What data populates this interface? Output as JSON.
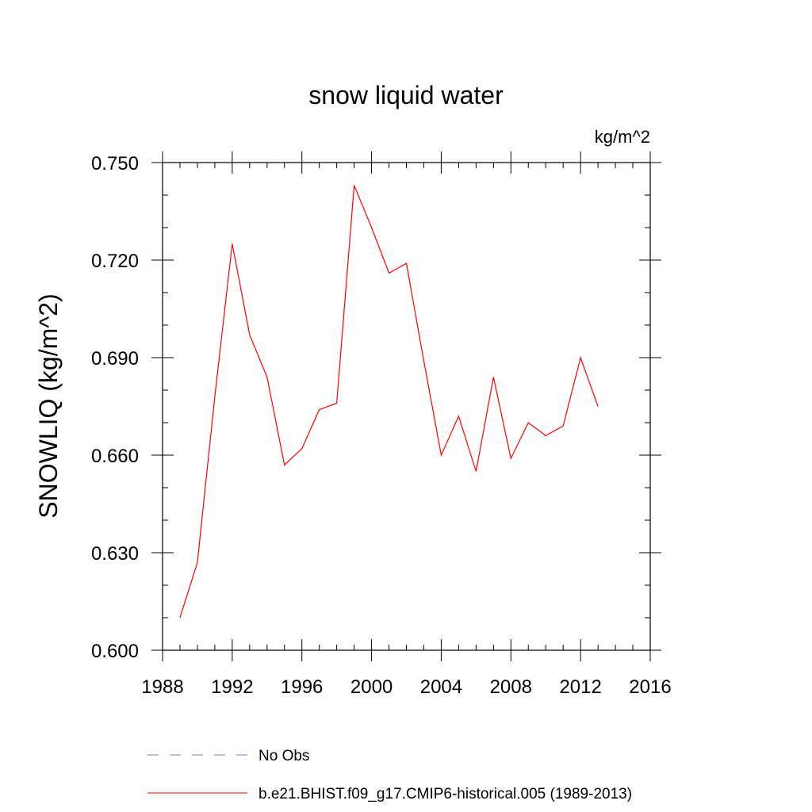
{
  "chart_data": {
    "type": "line",
    "title": "snow liquid water",
    "units_label": "kg/m^2",
    "ylabel": "SNOWLIQ  (kg/m^2)",
    "xlabel": "",
    "xlim": [
      1988,
      2016
    ],
    "ylim": [
      0.6,
      0.75
    ],
    "x_ticks": [
      1988,
      1992,
      1996,
      2000,
      2004,
      2008,
      2012,
      2016
    ],
    "x_tick_labels": [
      "1988",
      "1992",
      "1996",
      "2000",
      "2004",
      "2008",
      "2012",
      "2016"
    ],
    "x_minor_step": 1,
    "y_ticks": [
      0.6,
      0.63,
      0.66,
      0.69,
      0.72,
      0.75
    ],
    "y_tick_labels": [
      "0.600",
      "0.630",
      "0.660",
      "0.690",
      "0.720",
      "0.750"
    ],
    "y_minor_step": 0.01,
    "grid": false,
    "legend_position": "bottom",
    "series": [
      {
        "name": "No Obs",
        "color": "#7b7bc8",
        "style": "dashed",
        "x": [],
        "values": []
      },
      {
        "name": "b.e21.BHIST.f09_g17.CMIP6-historical.005 (1989-2013)",
        "color": "#ff0000",
        "style": "solid",
        "x": [
          1989,
          1990,
          1991,
          1992,
          1993,
          1994,
          1995,
          1996,
          1997,
          1998,
          1999,
          2000,
          2001,
          2002,
          2003,
          2004,
          2005,
          2006,
          2007,
          2008,
          2009,
          2010,
          2011,
          2012,
          2013
        ],
        "values": [
          0.61,
          0.627,
          0.678,
          0.725,
          0.697,
          0.684,
          0.657,
          0.662,
          0.674,
          0.676,
          0.743,
          0.73,
          0.716,
          0.719,
          0.689,
          0.66,
          0.672,
          0.655,
          0.684,
          0.659,
          0.67,
          0.666,
          0.669,
          0.69,
          0.675
        ]
      }
    ]
  }
}
